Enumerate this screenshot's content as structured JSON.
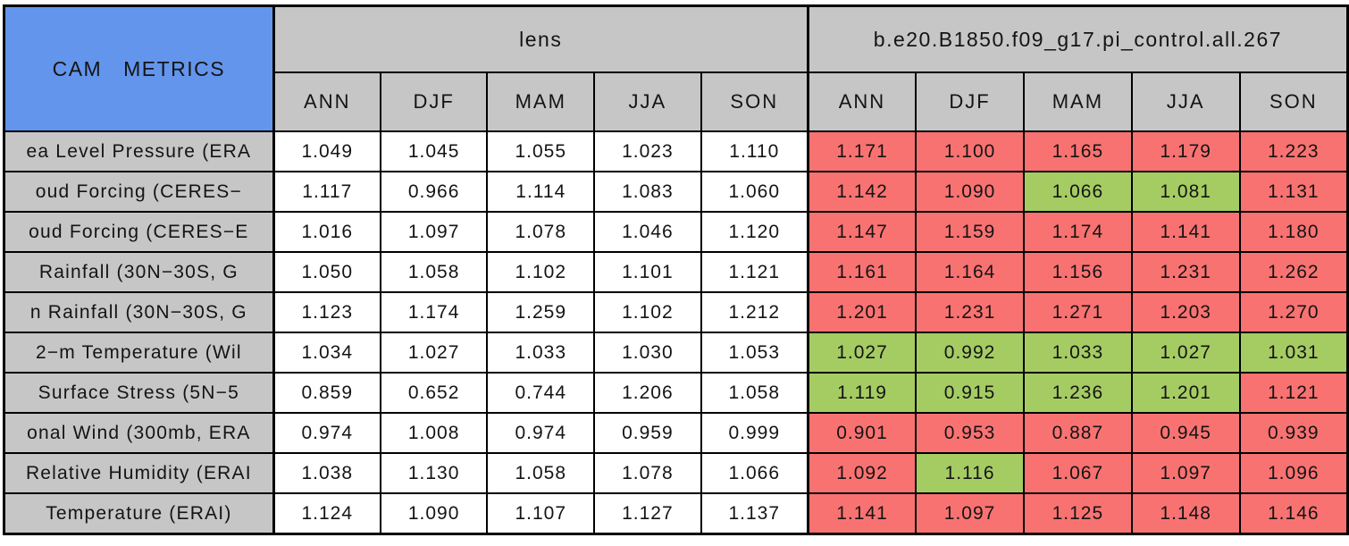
{
  "title": "CAM METRICS",
  "groups": {
    "lens": "lens",
    "control": "b.e20.B1850.f09_g17.pi_control.all.267"
  },
  "seasons": [
    "ANN",
    "DJF",
    "MAM",
    "JJA",
    "SON"
  ],
  "colors": {
    "title_blue": "#6495ec",
    "header_gray": "#c6c6c6",
    "worse_red": "#f97272",
    "better_green": "#a5cc63"
  },
  "rows": [
    {
      "label": "ea Level Pressure (ERA",
      "lens": [
        "1.049",
        "1.045",
        "1.055",
        "1.023",
        "1.110"
      ],
      "control": [
        "1.171",
        "1.100",
        "1.165",
        "1.179",
        "1.223"
      ],
      "status": [
        "red",
        "red",
        "red",
        "red",
        "red"
      ]
    },
    {
      "label": "oud Forcing (CERES−",
      "lens": [
        "1.117",
        "0.966",
        "1.114",
        "1.083",
        "1.060"
      ],
      "control": [
        "1.142",
        "1.090",
        "1.066",
        "1.081",
        "1.131"
      ],
      "status": [
        "red",
        "red",
        "green",
        "green",
        "red"
      ]
    },
    {
      "label": "oud Forcing (CERES−E",
      "lens": [
        "1.016",
        "1.097",
        "1.078",
        "1.046",
        "1.120"
      ],
      "control": [
        "1.147",
        "1.159",
        "1.174",
        "1.141",
        "1.180"
      ],
      "status": [
        "red",
        "red",
        "red",
        "red",
        "red"
      ]
    },
    {
      "label": "Rainfall (30N−30S, G",
      "lens": [
        "1.050",
        "1.058",
        "1.102",
        "1.101",
        "1.121"
      ],
      "control": [
        "1.161",
        "1.164",
        "1.156",
        "1.231",
        "1.262"
      ],
      "status": [
        "red",
        "red",
        "red",
        "red",
        "red"
      ]
    },
    {
      "label": "n Rainfall (30N−30S, G",
      "lens": [
        "1.123",
        "1.174",
        "1.259",
        "1.102",
        "1.212"
      ],
      "control": [
        "1.201",
        "1.231",
        "1.271",
        "1.203",
        "1.270"
      ],
      "status": [
        "red",
        "red",
        "red",
        "red",
        "red"
      ]
    },
    {
      "label": "2−m Temperature (Wil",
      "lens": [
        "1.034",
        "1.027",
        "1.033",
        "1.030",
        "1.053"
      ],
      "control": [
        "1.027",
        "0.992",
        "1.033",
        "1.027",
        "1.031"
      ],
      "status": [
        "green",
        "green",
        "green",
        "green",
        "green"
      ]
    },
    {
      "label": "Surface Stress (5N−5",
      "lens": [
        "0.859",
        "0.652",
        "0.744",
        "1.206",
        "1.058"
      ],
      "control": [
        "1.119",
        "0.915",
        "1.236",
        "1.201",
        "1.121"
      ],
      "status": [
        "green",
        "green",
        "green",
        "green",
        "red"
      ]
    },
    {
      "label": "onal Wind (300mb, ERA",
      "lens": [
        "0.974",
        "1.008",
        "0.974",
        "0.959",
        "0.999"
      ],
      "control": [
        "0.901",
        "0.953",
        "0.887",
        "0.945",
        "0.939"
      ],
      "status": [
        "red",
        "red",
        "red",
        "red",
        "red"
      ]
    },
    {
      "label": "Relative Humidity (ERAI",
      "lens": [
        "1.038",
        "1.130",
        "1.058",
        "1.078",
        "1.066"
      ],
      "control": [
        "1.092",
        "1.116",
        "1.067",
        "1.097",
        "1.096"
      ],
      "status": [
        "red",
        "green",
        "red",
        "red",
        "red"
      ]
    },
    {
      "label": "Temperature (ERAI)",
      "lens": [
        "1.124",
        "1.090",
        "1.107",
        "1.127",
        "1.137"
      ],
      "control": [
        "1.141",
        "1.097",
        "1.125",
        "1.148",
        "1.146"
      ],
      "status": [
        "red",
        "red",
        "red",
        "red",
        "red"
      ]
    }
  ],
  "chart_data": {
    "type": "table",
    "title": "CAM METRICS",
    "column_groups": [
      "lens",
      "b.e20.B1850.f09_g17.pi_control.all.267"
    ],
    "columns": [
      "ANN",
      "DJF",
      "MAM",
      "JJA",
      "SON"
    ],
    "cell_color_legend": {
      "red": "worse metric",
      "green": "better metric",
      "white": "reference (lens)"
    },
    "rows": [
      {
        "label": "ea Level Pressure (ERA",
        "lens": [
          1.049,
          1.045,
          1.055,
          1.023,
          1.11
        ],
        "control": [
          1.171,
          1.1,
          1.165,
          1.179,
          1.223
        ],
        "control_status": [
          "red",
          "red",
          "red",
          "red",
          "red"
        ]
      },
      {
        "label": "oud Forcing (CERES-",
        "lens": [
          1.117,
          0.966,
          1.114,
          1.083,
          1.06
        ],
        "control": [
          1.142,
          1.09,
          1.066,
          1.081,
          1.131
        ],
        "control_status": [
          "red",
          "red",
          "green",
          "green",
          "red"
        ]
      },
      {
        "label": "oud Forcing (CERES-E",
        "lens": [
          1.016,
          1.097,
          1.078,
          1.046,
          1.12
        ],
        "control": [
          1.147,
          1.159,
          1.174,
          1.141,
          1.18
        ],
        "control_status": [
          "red",
          "red",
          "red",
          "red",
          "red"
        ]
      },
      {
        "label": "Rainfall (30N-30S, G",
        "lens": [
          1.05,
          1.058,
          1.102,
          1.101,
          1.121
        ],
        "control": [
          1.161,
          1.164,
          1.156,
          1.231,
          1.262
        ],
        "control_status": [
          "red",
          "red",
          "red",
          "red",
          "red"
        ]
      },
      {
        "label": "n Rainfall (30N-30S, G",
        "lens": [
          1.123,
          1.174,
          1.259,
          1.102,
          1.212
        ],
        "control": [
          1.201,
          1.231,
          1.271,
          1.203,
          1.27
        ],
        "control_status": [
          "red",
          "red",
          "red",
          "red",
          "red"
        ]
      },
      {
        "label": "2-m Temperature (Wil",
        "lens": [
          1.034,
          1.027,
          1.033,
          1.03,
          1.053
        ],
        "control": [
          1.027,
          0.992,
          1.033,
          1.027,
          1.031
        ],
        "control_status": [
          "green",
          "green",
          "green",
          "green",
          "green"
        ]
      },
      {
        "label": "Surface Stress (5N-5",
        "lens": [
          0.859,
          0.652,
          0.744,
          1.206,
          1.058
        ],
        "control": [
          1.119,
          0.915,
          1.236,
          1.201,
          1.121
        ],
        "control_status": [
          "green",
          "green",
          "green",
          "green",
          "red"
        ]
      },
      {
        "label": "onal Wind (300mb, ERA",
        "lens": [
          0.974,
          1.008,
          0.974,
          0.959,
          0.999
        ],
        "control": [
          0.901,
          0.953,
          0.887,
          0.945,
          0.939
        ],
        "control_status": [
          "red",
          "red",
          "red",
          "red",
          "red"
        ]
      },
      {
        "label": "Relative Humidity (ERAI",
        "lens": [
          1.038,
          1.13,
          1.058,
          1.078,
          1.066
        ],
        "control": [
          1.092,
          1.116,
          1.067,
          1.097,
          1.096
        ],
        "control_status": [
          "red",
          "green",
          "red",
          "red",
          "red"
        ]
      },
      {
        "label": "Temperature (ERAI)",
        "lens": [
          1.124,
          1.09,
          1.107,
          1.127,
          1.137
        ],
        "control": [
          1.141,
          1.097,
          1.125,
          1.148,
          1.146
        ],
        "control_status": [
          "red",
          "red",
          "red",
          "red",
          "red"
        ]
      }
    ]
  }
}
